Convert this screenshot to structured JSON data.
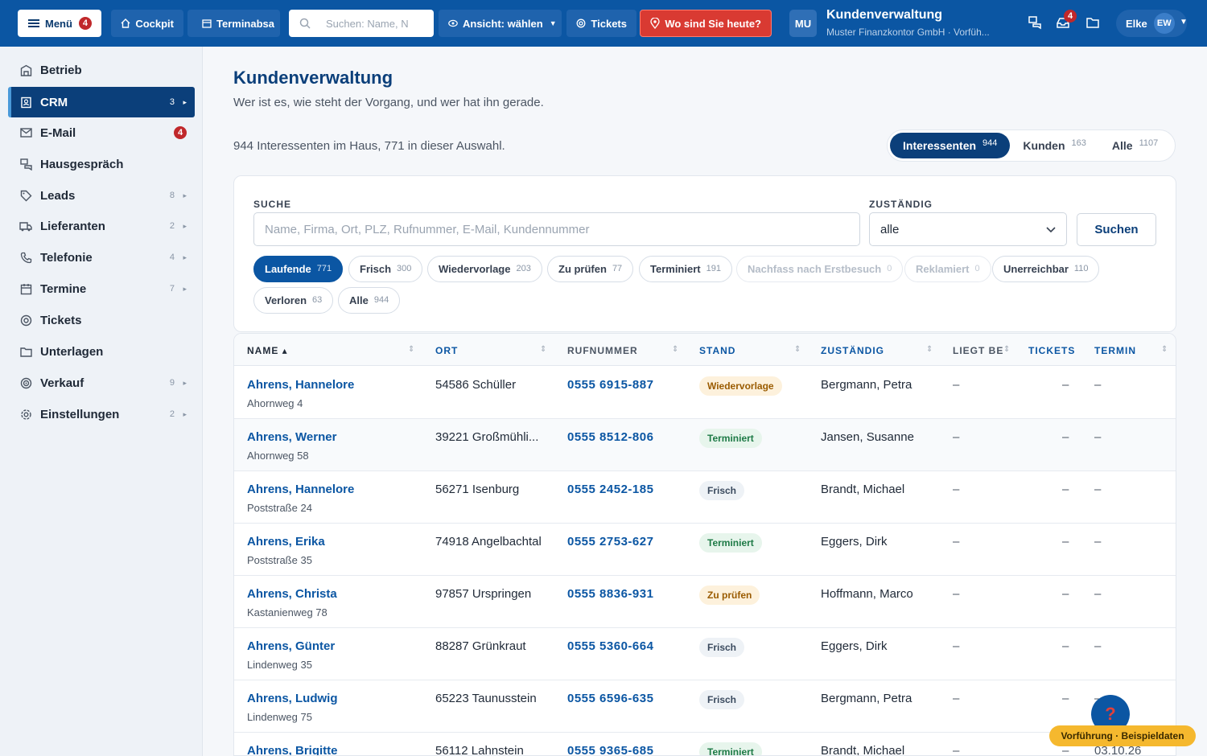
{
  "topbar": {
    "menu_label": "Menü",
    "menu_badge": "4",
    "cockpit_label": "Cockpit",
    "termin_label": "Terminabsa",
    "search_placeholder": "Suchen: Name, N",
    "ansicht_label": "Ansicht: wählen",
    "tickets_label": "Tickets",
    "wo_label": "Wo sind Sie heute?",
    "org_initials": "MU",
    "org_title": "Kundenverwaltung",
    "org_subtitle": "Muster Finanzkontor GmbH · Vorfüh...",
    "mail_badge": "4",
    "user_name": "Elke",
    "user_initials": "EW"
  },
  "sidebar": {
    "items": [
      {
        "label": "Betrieb",
        "icon": "building-icon",
        "count": "",
        "arrow": ""
      },
      {
        "label": "CRM",
        "icon": "contacts-icon",
        "count": "3",
        "arrow": "▸"
      },
      {
        "label": "E-Mail",
        "icon": "mail-icon",
        "count": "",
        "arrow": "",
        "badge": "4"
      },
      {
        "label": "Hausgespräch",
        "icon": "chat-icon",
        "count": "",
        "arrow": ""
      },
      {
        "label": "Leads",
        "icon": "tag-icon",
        "count": "8",
        "arrow": "▸"
      },
      {
        "label": "Lieferanten",
        "icon": "truck-icon",
        "count": "2",
        "arrow": "▸"
      },
      {
        "label": "Telefonie",
        "icon": "phone-icon",
        "count": "4",
        "arrow": "▸"
      },
      {
        "label": "Termine",
        "icon": "calendar-icon",
        "count": "7",
        "arrow": "▸"
      },
      {
        "label": "Tickets",
        "icon": "lifebuoy-icon",
        "count": "",
        "arrow": ""
      },
      {
        "label": "Unterlagen",
        "icon": "folder-icon",
        "count": "",
        "arrow": ""
      },
      {
        "label": "Verkauf",
        "icon": "target-icon",
        "count": "9",
        "arrow": "▸"
      },
      {
        "label": "Einstellungen",
        "icon": "gear-icon",
        "count": "2",
        "arrow": "▸"
      }
    ]
  },
  "main": {
    "title": "Kundenverwaltung",
    "subtitle": "Wer ist es, wie steht der Vorgang, und wer hat ihn gerade.",
    "summary": "944 Interessenten im Haus, 771 in dieser Auswahl.",
    "segments": [
      {
        "label": "Interessenten",
        "count": "944"
      },
      {
        "label": "Kunden",
        "count": "163"
      },
      {
        "label": "Alle",
        "count": "1107"
      }
    ]
  },
  "filters": {
    "search_label": "SUCHE",
    "search_placeholder": "Name, Firma, Ort, PLZ, Rufnummer, E-Mail, Kundennummer",
    "search_value": "",
    "assignee_label": "ZUSTÄNDIG",
    "assignee_value": "alle",
    "submit_label": "Suchen",
    "chips": [
      {
        "label": "Laufende",
        "count": "771"
      },
      {
        "label": "Frisch",
        "count": "300"
      },
      {
        "label": "Wiedervorlage",
        "count": "203"
      },
      {
        "label": "Zu prüfen",
        "count": "77"
      },
      {
        "label": "Terminiert",
        "count": "191"
      },
      {
        "label": "Nachfass nach Erstbesuch",
        "count": "0"
      },
      {
        "label": "Reklamiert",
        "count": "0"
      },
      {
        "label": "Unerreichbar",
        "count": "110"
      },
      {
        "label": "Verloren",
        "count": "63"
      },
      {
        "label": "Alle",
        "count": "944"
      }
    ]
  },
  "table": {
    "columns": {
      "name": "NAME ▴",
      "ort": "ORT",
      "rufnummer": "RUFNUMMER",
      "stand": "STAND",
      "zustaendig": "ZUSTÄNDIG",
      "liegt": "LIEGT BEI",
      "tickets": "TICKETS",
      "termin": "TERMIN"
    },
    "rows": [
      {
        "name": "Ahrens, Hannelore",
        "address": "Ahornweg 4",
        "ort": "54586 Schüller",
        "tel": "0555 6915-887",
        "stand": "Wiedervorlage",
        "stand_class": "st-wiedervorlage",
        "zust": "Bergmann, Petra",
        "liegt": "–",
        "tickets": "–",
        "termin": "–"
      },
      {
        "name": "Ahrens, Werner",
        "address": "Ahornweg 58",
        "ort": "39221 Großmühli...",
        "tel": "0555 8512-806",
        "stand": "Terminiert",
        "stand_class": "st-terminiert",
        "zust": "Jansen, Susanne",
        "liegt": "–",
        "tickets": "–",
        "termin": "–"
      },
      {
        "name": "Ahrens, Hannelore",
        "address": "Poststraße 24",
        "ort": "56271 Isenburg",
        "tel": "0555 2452-185",
        "stand": "Frisch",
        "stand_class": "st-frisch",
        "zust": "Brandt, Michael",
        "liegt": "–",
        "tickets": "–",
        "termin": "–"
      },
      {
        "name": "Ahrens, Erika",
        "address": "Poststraße 35",
        "ort": "74918 Angelbachtal",
        "tel": "0555 2753-627",
        "stand": "Terminiert",
        "stand_class": "st-terminiert",
        "zust": "Eggers, Dirk",
        "liegt": "–",
        "tickets": "–",
        "termin": "–"
      },
      {
        "name": "Ahrens, Christa",
        "address": "Kastanienweg 78",
        "ort": "97857 Urspringen",
        "tel": "0555 8836-931",
        "stand": "Zu prüfen",
        "stand_class": "st-pruefen",
        "zust": "Hoffmann, Marco",
        "liegt": "–",
        "tickets": "–",
        "termin": "–"
      },
      {
        "name": "Ahrens, Günter",
        "address": "Lindenweg 35",
        "ort": "88287 Grünkraut",
        "tel": "0555 5360-664",
        "stand": "Frisch",
        "stand_class": "st-frisch",
        "zust": "Eggers, Dirk",
        "liegt": "–",
        "tickets": "–",
        "termin": "–"
      },
      {
        "name": "Ahrens, Ludwig",
        "address": "Lindenweg 75",
        "ort": "65223 Taunusstein",
        "tel": "0555 6596-635",
        "stand": "Frisch",
        "stand_class": "st-frisch",
        "zust": "Bergmann, Petra",
        "liegt": "–",
        "tickets": "–",
        "termin": "–"
      },
      {
        "name": "Ahrens, Brigitte",
        "address": "",
        "ort": "56112 Lahnstein",
        "tel": "0555 9365-685",
        "stand": "Terminiert",
        "stand_class": "st-terminiert",
        "zust": "Brandt, Michael",
        "liegt": "–",
        "tickets": "–",
        "termin": "03.10.26"
      }
    ]
  },
  "floating": {
    "help_icon": "?",
    "demo_label": "Vorführung · Beispieldaten"
  },
  "colors": {
    "brand": "#0b56a3",
    "brand_dark": "#0b3f7a",
    "alert": "#d93a32",
    "demo": "#f5b82e"
  }
}
